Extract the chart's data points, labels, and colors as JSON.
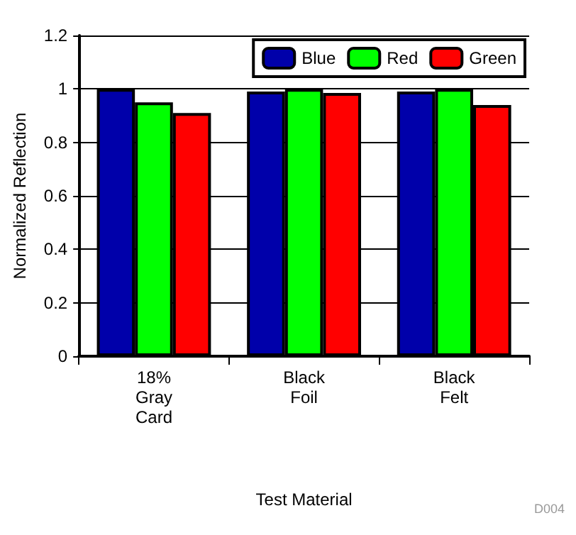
{
  "chart_data": {
    "type": "bar",
    "xlabel": "Test Material",
    "ylabel": "Normalized Reflection",
    "categories": [
      "18%\nGray\nCard",
      "Black\nFoil",
      "Black\nFelt"
    ],
    "series": [
      {
        "name": "Blue",
        "color": "#0000aa",
        "values": [
          1.0,
          0.99,
          0.99
        ]
      },
      {
        "name": "Red",
        "color": "#00ff00",
        "values": [
          0.95,
          1.0,
          1.0
        ]
      },
      {
        "name": "Green",
        "color": "#ff0000",
        "values": [
          0.91,
          0.985,
          0.94
        ]
      }
    ],
    "ylim": [
      0,
      1.2
    ],
    "yticks": [
      0,
      0.2,
      0.4,
      0.6,
      0.8,
      1,
      1.2
    ],
    "grid": "y",
    "legend": "top right",
    "annotations": [
      "D004"
    ]
  }
}
